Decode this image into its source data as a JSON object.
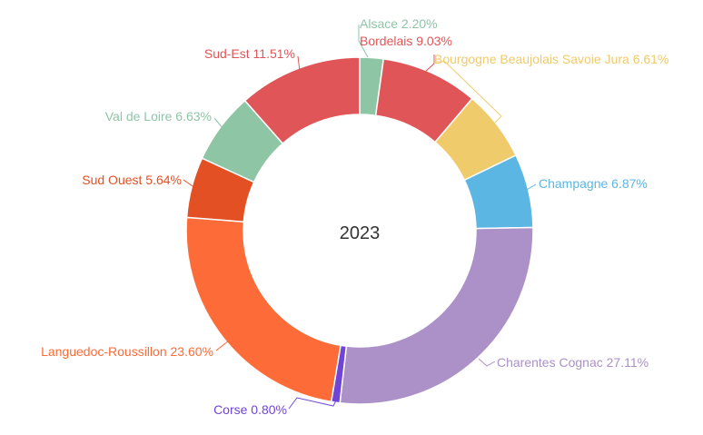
{
  "chart_data": {
    "type": "pie",
    "subtype": "donut",
    "center_label": "2023",
    "unit": "%",
    "slices": [
      {
        "label": "Alsace",
        "value": 2.2,
        "display": "Alsace 2.20%",
        "color": "#8ec5a5"
      },
      {
        "label": "Bordelais",
        "value": 9.03,
        "display": "Bordelais 9.03%",
        "color": "#e05557"
      },
      {
        "label": "Bourgogne Beaujolais Savoie Jura",
        "value": 6.61,
        "display": "Bourgogne Beaujolais Savoie Jura 6.61%",
        "color": "#f0cb6b"
      },
      {
        "label": "Champagne",
        "value": 6.87,
        "display": "Champagne 6.87%",
        "color": "#5cb6e3"
      },
      {
        "label": "Charentes Cognac",
        "value": 27.11,
        "display": "Charentes Cognac 27.11%",
        "color": "#ab91c8"
      },
      {
        "label": "Corse",
        "value": 0.8,
        "display": "Corse 0.80%",
        "color": "#7044d6"
      },
      {
        "label": "Languedoc-Roussillon",
        "value": 23.6,
        "display": "Languedoc-Roussillon 23.60%",
        "color": "#fd6b39"
      },
      {
        "label": "Sud Ouest",
        "value": 5.64,
        "display": "Sud Ouest 5.64%",
        "color": "#e35024"
      },
      {
        "label": "Val de Loire",
        "value": 6.63,
        "display": "Val de Loire 6.63%",
        "color": "#8ec5a5"
      },
      {
        "label": "Sud-Est",
        "value": 11.51,
        "display": "Sud-Est 11.51%",
        "color": "#e05557"
      }
    ]
  }
}
